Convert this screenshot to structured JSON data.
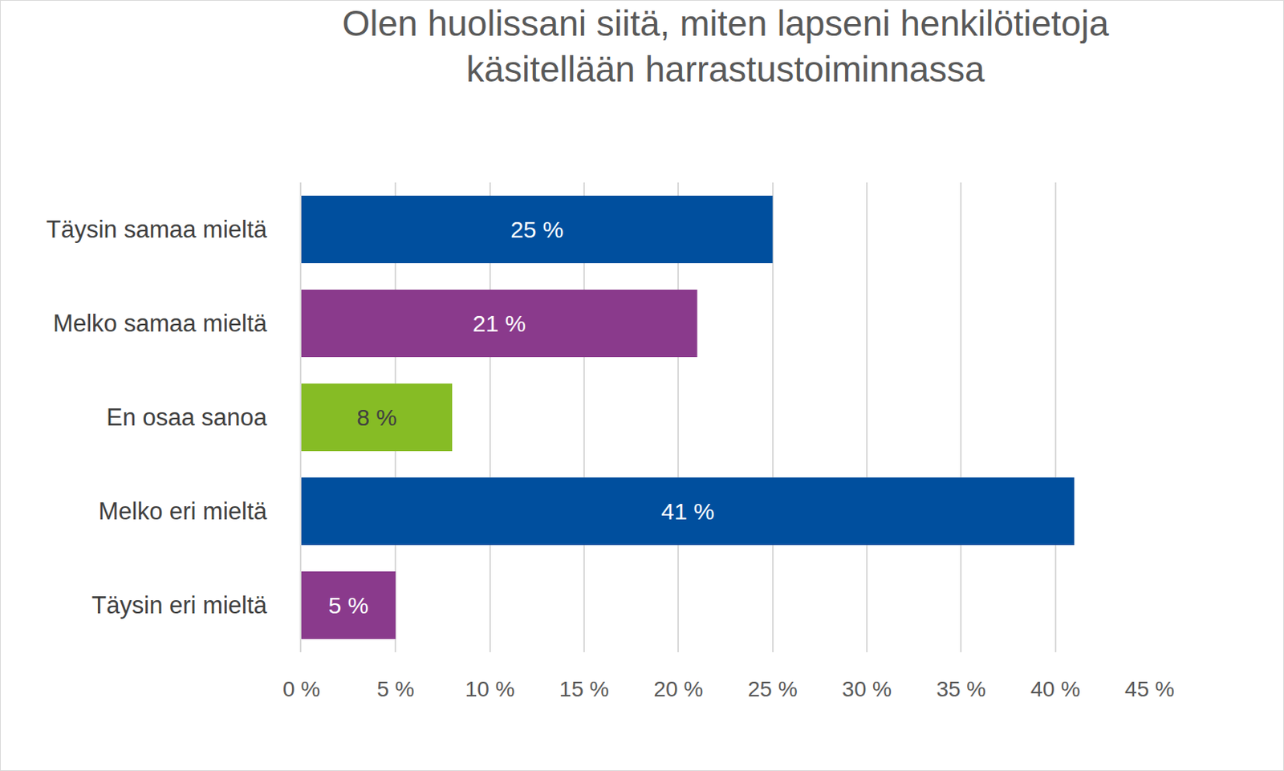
{
  "chart_data": {
    "type": "bar",
    "orientation": "horizontal",
    "title": "Olen huolissani siitä, miten lapseni henkilötietoja käsitellään harrastustoiminnassa",
    "categories": [
      "Täysin samaa mieltä",
      "Melko samaa mieltä",
      "En osaa sanoa",
      "Melko eri mieltä",
      "Täysin eri mieltä"
    ],
    "values": [
      25,
      21,
      8,
      41,
      5
    ],
    "value_labels": [
      "25 %",
      "21 %",
      "8 %",
      "41 %",
      "5 %"
    ],
    "colors": [
      "#004f9e",
      "#8a3a8c",
      "#86bc25",
      "#004f9e",
      "#8a3a8c"
    ],
    "xlim": [
      0,
      45
    ],
    "xticks": [
      {
        "value": 0,
        "label": "0 %"
      },
      {
        "value": 5,
        "label": "5 %"
      },
      {
        "value": 10,
        "label": "10 %"
      },
      {
        "value": 15,
        "label": "15 %"
      },
      {
        "value": 20,
        "label": "20 %"
      },
      {
        "value": 25,
        "label": "25 %"
      },
      {
        "value": 30,
        "label": "30 %"
      },
      {
        "value": 35,
        "label": "35 %"
      },
      {
        "value": 40,
        "label": "40 %"
      },
      {
        "value": 45,
        "label": "45 %"
      }
    ],
    "grid": true,
    "data_labels": true
  }
}
